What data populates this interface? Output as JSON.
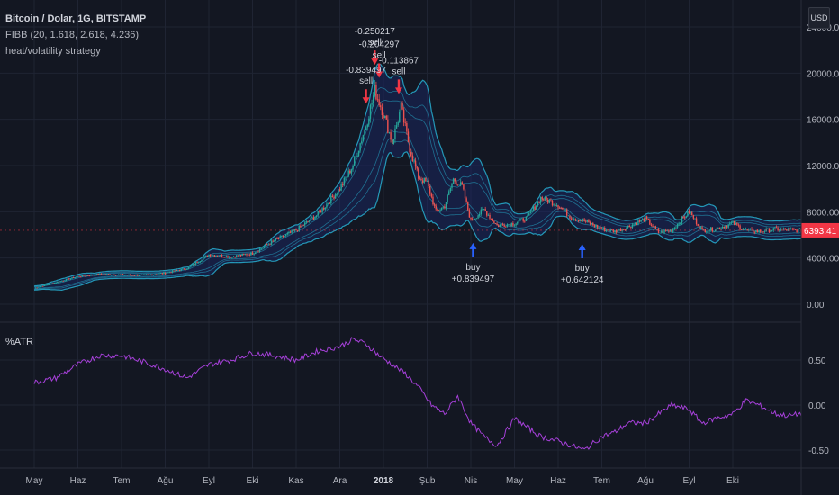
{
  "header": {
    "symbol": "Bitcoin / Dolar, 1G, BITSTAMP",
    "indicator": "FIBB (20, 1.618, 2.618, 4.236)",
    "strategy": "heat/volatility strategy",
    "currency": "USD"
  },
  "colors": {
    "background": "#131722",
    "grid": "#1f2433",
    "band": "#26a6c7",
    "bull": "#26a69a",
    "bear": "#ef5350",
    "atr": "#a640d9",
    "buy_arrow": "#2962ff",
    "sell_arrow": "#f23645",
    "last_price_bg": "#f23645"
  },
  "chart_data": [
    {
      "type": "candlestick",
      "title": "Bitcoin / Dolar, 1G, BITSTAMP",
      "x_tick_labels": [
        "May",
        "Haz",
        "Tem",
        "Ağu",
        "Eyl",
        "Eki",
        "Kas",
        "Ara",
        "2018",
        "Şub",
        "Nis",
        "May",
        "Haz",
        "Tem",
        "Ağu",
        "Eyl",
        "Eki"
      ],
      "y_tick_labels": [
        "0.00",
        "4000.00",
        "8000.00",
        "12000.00",
        "16000.00",
        "20000.00",
        "24000.00"
      ],
      "ylim": [
        0,
        24000
      ],
      "last_price": "6393.41",
      "series": [
        {
          "name": "close",
          "x_months": [
            0,
            0.5,
            1,
            1.5,
            2,
            2.5,
            3,
            3.5,
            4,
            4.5,
            5,
            5.5,
            6,
            6.5,
            7,
            7.3,
            7.6,
            7.8,
            8.0,
            8.2,
            8.4,
            8.6,
            8.8,
            9.0,
            9.2,
            9.4,
            9.6,
            9.8,
            10.0,
            10.3,
            10.6,
            11.0,
            11.3,
            11.6,
            12.0,
            12.3,
            12.6,
            13.0,
            13.3,
            13.6,
            14.0,
            14.3,
            14.6,
            15.0,
            15.3,
            15.6,
            16.0,
            16.3,
            16.6,
            17.0,
            17.3,
            17.6
          ],
          "values": [
            1400,
            1900,
            2400,
            2600,
            2550,
            2500,
            2700,
            3100,
            4300,
            4100,
            4400,
            5500,
            6400,
            7800,
            10000,
            12000,
            15500,
            18500,
            16500,
            14000,
            17000,
            13500,
            11000,
            10500,
            8000,
            8500,
            10800,
            10200,
            7200,
            8200,
            6800,
            7000,
            7500,
            9200,
            8600,
            7500,
            7200,
            6500,
            6300,
            6700,
            7400,
            6200,
            6400,
            8000,
            6400,
            6500,
            7000,
            6400,
            6300,
            6500,
            6400,
            6393
          ]
        }
      ],
      "annotations": [
        {
          "label": "sell",
          "value": "-0.250217",
          "x_month": 7.8
        },
        {
          "label": "sell",
          "value": "-0.204297",
          "x_month": 7.9
        },
        {
          "label": "sell",
          "value": "-0.839497",
          "x_month": 7.6
        },
        {
          "label": "sell",
          "value": "-0.113867",
          "x_month": 8.35
        },
        {
          "label": "buy",
          "value": "+0.839497",
          "x_month": 10.05
        },
        {
          "label": "buy",
          "value": "+0.642124",
          "x_month": 12.55
        }
      ]
    },
    {
      "type": "line",
      "title": "%ATR",
      "y_tick_labels": [
        "0.50",
        "0.00",
        "-0.50"
      ],
      "ylim": [
        -0.6,
        0.8
      ],
      "series": [
        {
          "name": "%ATR",
          "x_months": [
            0,
            0.5,
            1,
            1.5,
            2,
            2.5,
            3,
            3.5,
            4,
            4.5,
            5,
            5.5,
            6,
            6.5,
            7,
            7.3,
            7.6,
            7.9,
            8.2,
            8.5,
            8.8,
            9.1,
            9.4,
            9.7,
            10.0,
            10.3,
            10.6,
            11.0,
            11.3,
            11.6,
            12.0,
            12.3,
            12.6,
            13.0,
            13.3,
            13.6,
            14.0,
            14.3,
            14.6,
            15.0,
            15.3,
            15.6,
            16.0,
            16.3,
            16.6,
            17.0,
            17.3,
            17.6
          ],
          "values": [
            0.25,
            0.3,
            0.45,
            0.55,
            0.55,
            0.48,
            0.4,
            0.3,
            0.45,
            0.5,
            0.58,
            0.55,
            0.5,
            0.6,
            0.65,
            0.73,
            0.68,
            0.55,
            0.45,
            0.35,
            0.2,
            0.0,
            -0.1,
            0.1,
            -0.2,
            -0.35,
            -0.45,
            -0.15,
            -0.25,
            -0.35,
            -0.4,
            -0.45,
            -0.5,
            -0.35,
            -0.3,
            -0.2,
            -0.2,
            -0.1,
            0.0,
            -0.05,
            -0.2,
            -0.15,
            -0.1,
            0.05,
            0.0,
            -0.1,
            -0.12,
            -0.09
          ]
        }
      ]
    }
  ]
}
